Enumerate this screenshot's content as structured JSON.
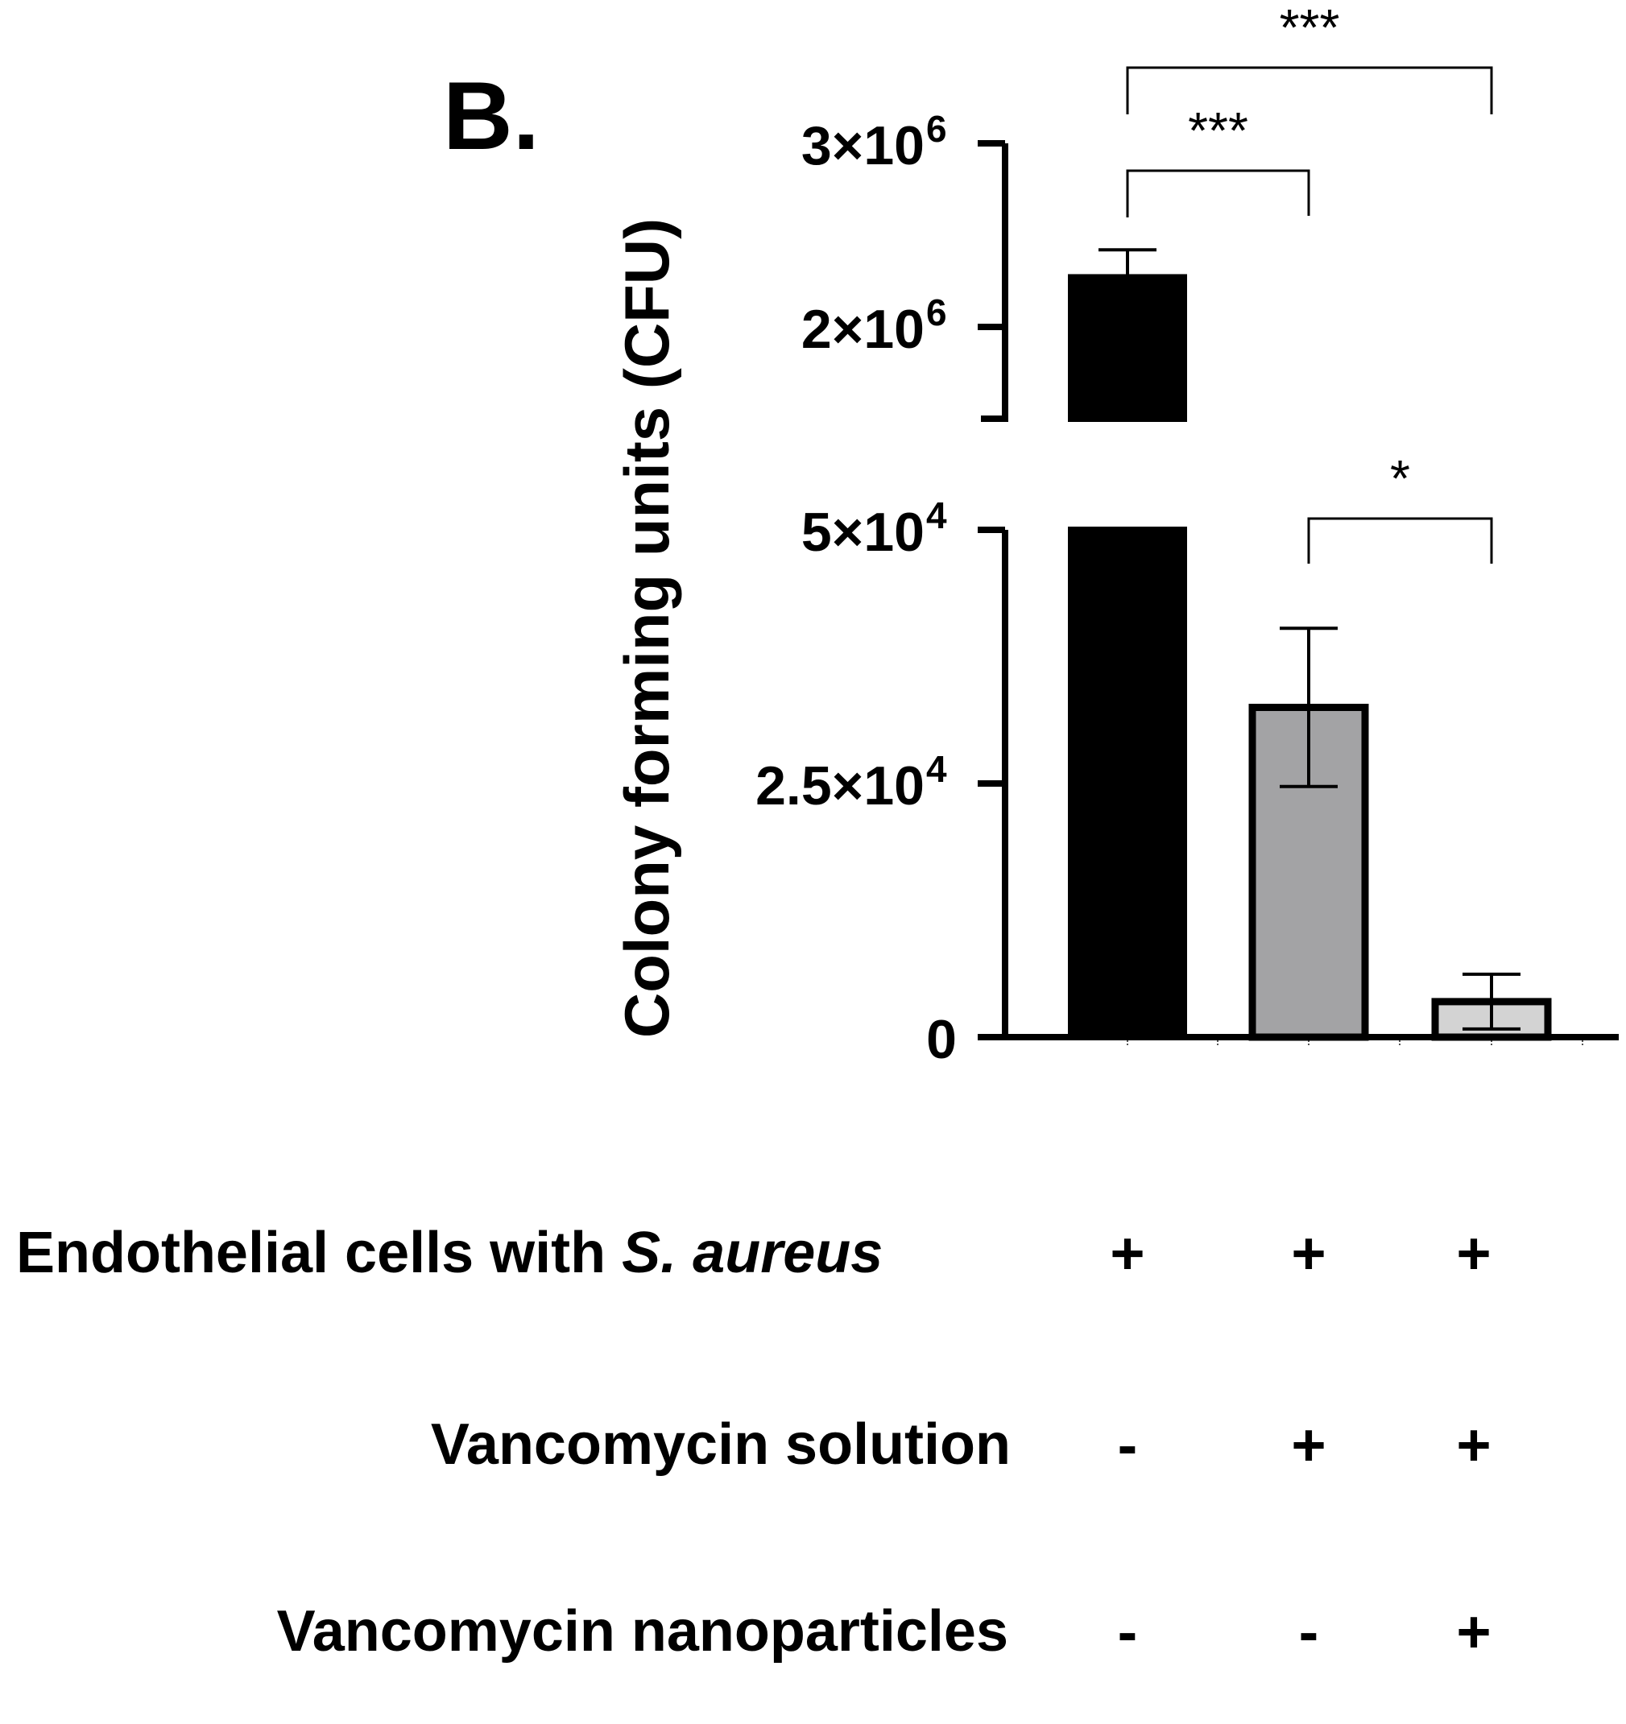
{
  "panel_label": "B.",
  "chart_data": {
    "type": "bar",
    "ylabel": "Colony forming units (CFU)",
    "xlabel": "",
    "y_axis_break": true,
    "y_segments": [
      {
        "range": [
          0,
          50000
        ],
        "ticks": [
          {
            "value": 0,
            "label": "0"
          },
          {
            "value": 25000,
            "label": "2.5×10",
            "exp": "4"
          },
          {
            "value": 50000,
            "label": "5×10",
            "exp": "4"
          }
        ]
      },
      {
        "range": [
          1500000,
          3000000
        ],
        "ticks": [
          {
            "value": 2000000,
            "label": "2×10",
            "exp": "6"
          },
          {
            "value": 3000000,
            "label": "3×10",
            "exp": "6"
          }
        ]
      }
    ],
    "categories": [
      "1",
      "2",
      "3"
    ],
    "values": [
      2270000,
      32500,
      3500
    ],
    "errors": [
      150000,
      7800,
      2700
    ],
    "bar_colors": [
      "#000000",
      "#a3a3a5",
      "#d3d3d3"
    ],
    "significance": [
      {
        "from": 0,
        "to": 1,
        "label": "***"
      },
      {
        "from": 0,
        "to": 2,
        "label": "***"
      },
      {
        "from": 1,
        "to": 2,
        "label": "*"
      }
    ],
    "condition_table": {
      "rows": [
        {
          "label": "Endothelial cells with ",
          "label_italic": "S. aureus",
          "values": [
            "+",
            "+",
            "+"
          ]
        },
        {
          "label": "Vancomycin solution",
          "label_italic": "",
          "values": [
            "-",
            "+",
            "+"
          ]
        },
        {
          "label": "Vancomycin nanoparticles",
          "label_italic": "",
          "values": [
            "-",
            "-",
            "+"
          ]
        }
      ]
    }
  }
}
